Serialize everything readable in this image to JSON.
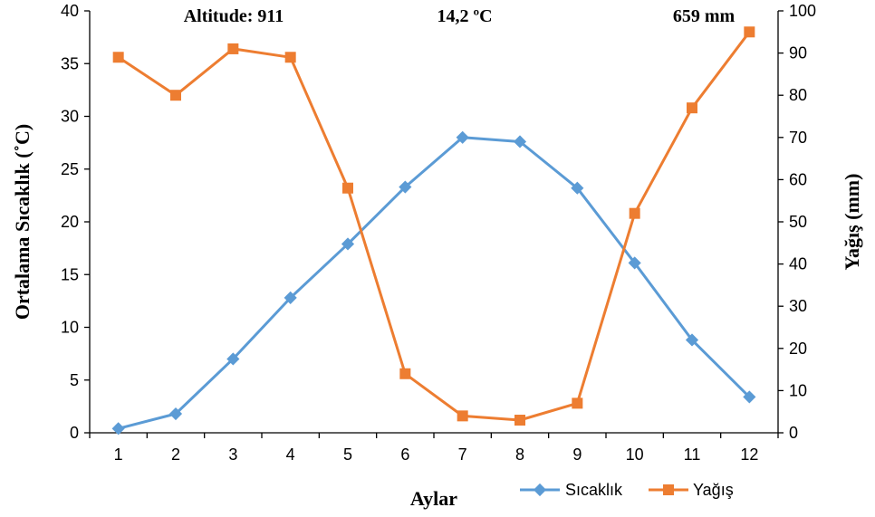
{
  "chart_data": {
    "type": "line",
    "xlabel": "Aylar",
    "ylabel_left": "Ortalama Sıcaklık (˚C)",
    "ylabel_right": "Yağış (mm)",
    "categories": [
      "1",
      "2",
      "3",
      "4",
      "5",
      "6",
      "7",
      "8",
      "9",
      "10",
      "11",
      "12"
    ],
    "ylim_left": [
      0,
      40
    ],
    "yticks_left": [
      "0",
      "5",
      "10",
      "15",
      "20",
      "25",
      "30",
      "35",
      "40"
    ],
    "ylim_right": [
      0,
      100
    ],
    "yticks_right": [
      "0",
      "10",
      "20",
      "30",
      "40",
      "50",
      "60",
      "70",
      "80",
      "90",
      "100"
    ],
    "series": [
      {
        "name": "Sıcaklık",
        "axis": "left",
        "color": "#5B9BD5",
        "marker": "diamond",
        "values": [
          0.4,
          1.8,
          7.0,
          12.8,
          17.9,
          23.3,
          28.0,
          27.6,
          23.2,
          16.1,
          8.8,
          3.4
        ]
      },
      {
        "name": "Yağış",
        "axis": "right",
        "color": "#ED7D31",
        "marker": "square",
        "values": [
          89,
          80,
          91,
          89,
          58,
          14,
          4,
          3,
          7,
          52,
          77,
          95
        ]
      }
    ],
    "annotations": [
      "Altitude: 911",
      "14,2 ºC",
      "659 mm"
    ],
    "legend_position": "bottom-right",
    "grid": false
  }
}
